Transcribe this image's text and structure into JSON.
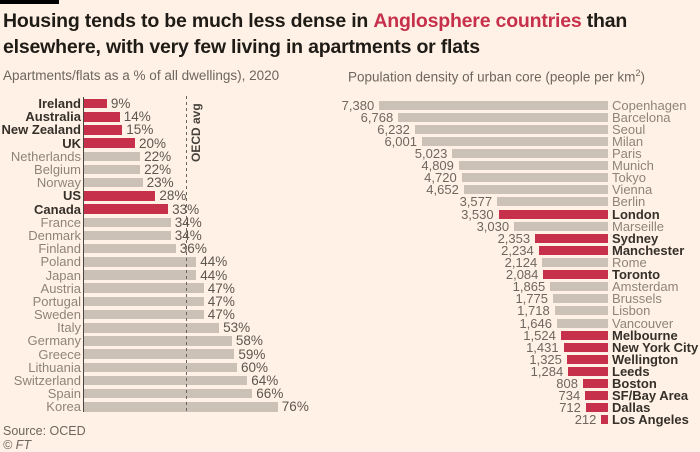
{
  "title": {
    "line1_pre": "Housing tends to be much less dense in ",
    "line1_highlight": "Anglosphere countries",
    "line1_post": " than",
    "line2": "elsewhere, with very few living in apartments or flats"
  },
  "subtitles": {
    "left": "Apartments/flats as a % of all dwellings), 2020",
    "right_pre": "Population density of urban core (people per km",
    "right_sup": "2",
    "right_post": ")"
  },
  "colors": {
    "background": "#FFF1E5",
    "highlight_red": "#C6304B",
    "bar_gray": "#CBC1B7",
    "title_text": "#1F1B16",
    "muted_text": "#6D665E",
    "black_bar": "#000000"
  },
  "chart_data": [
    {
      "type": "bar",
      "orientation": "horizontal",
      "title": "Apartments/flats as a % of all dwellings), 2020",
      "unit": "%",
      "xlim": [
        0,
        80
      ],
      "categories": [
        "Ireland",
        "Australia",
        "New Zealand",
        "UK",
        "Netherlands",
        "Belgium",
        "Norway",
        "US",
        "Canada",
        "France",
        "Denmark",
        "Finland",
        "Poland",
        "Japan",
        "Austria",
        "Portugal",
        "Sweden",
        "Italy",
        "Germany",
        "Greece",
        "Lithuania",
        "Switzerland",
        "Spain",
        "Korea"
      ],
      "values": [
        9,
        14,
        15,
        20,
        22,
        22,
        23,
        28,
        33,
        34,
        34,
        36,
        44,
        44,
        47,
        47,
        47,
        53,
        58,
        59,
        60,
        64,
        66,
        76
      ],
      "value_labels": [
        "9%",
        "14%",
        "15%",
        "20%",
        "22%",
        "22%",
        "23%",
        "28%",
        "33%",
        "34%",
        "34%",
        "36%",
        "44%",
        "44%",
        "47%",
        "47%",
        "47%",
        "53%",
        "58%",
        "59%",
        "60%",
        "64%",
        "66%",
        "76%"
      ],
      "highlight": [
        true,
        true,
        true,
        true,
        false,
        false,
        false,
        true,
        true,
        false,
        false,
        false,
        false,
        false,
        false,
        false,
        false,
        false,
        false,
        false,
        false,
        false,
        false,
        false
      ],
      "highlight_meaning": "Anglosphere countries",
      "annotation": {
        "label": "OECD avg",
        "value": 40
      }
    },
    {
      "type": "bar",
      "orientation": "horizontal-right-aligned",
      "title": "Population density of urban core (people per km2)",
      "unit": "people per km2",
      "xlim": [
        0,
        7500
      ],
      "categories": [
        "Copenhagen",
        "Barcelona",
        "Seoul",
        "Milan",
        "Paris",
        "Munich",
        "Tokyo",
        "Vienna",
        "Berlin",
        "London",
        "Marseille",
        "Sydney",
        "Manchester",
        "Rome",
        "Toronto",
        "Amsterdam",
        "Brussels",
        "Lisbon",
        "Vancouver",
        "Melbourne",
        "New York City",
        "Wellington",
        "Leeds",
        "Boston",
        "SF/Bay Area",
        "Dallas",
        "Los Angeles"
      ],
      "values": [
        7380,
        6768,
        6232,
        6001,
        5023,
        4809,
        4720,
        4652,
        3577,
        3530,
        3030,
        2353,
        2234,
        2124,
        2084,
        1865,
        1775,
        1718,
        1646,
        1524,
        1431,
        1325,
        1284,
        808,
        734,
        712,
        212
      ],
      "value_labels": [
        "7,380",
        "6,768",
        "6,232",
        "6,001",
        "5,023",
        "4,809",
        "4,720",
        "4,652",
        "3,577",
        "3,530",
        "3,030",
        "2,353",
        "2,234",
        "2,124",
        "2,084",
        "1,865",
        "1,775",
        "1,718",
        "1,646",
        "1,524",
        "1,431",
        "1,325",
        "1,284",
        "808",
        "734",
        "712",
        "212"
      ],
      "highlight": [
        false,
        false,
        false,
        false,
        false,
        false,
        false,
        false,
        false,
        true,
        false,
        true,
        true,
        false,
        true,
        false,
        false,
        false,
        false,
        true,
        true,
        true,
        true,
        true,
        true,
        true,
        true
      ],
      "highlight_meaning": "Anglosphere countries"
    }
  ],
  "footer": {
    "source": "Source: OCED",
    "copyright": "© FT"
  }
}
